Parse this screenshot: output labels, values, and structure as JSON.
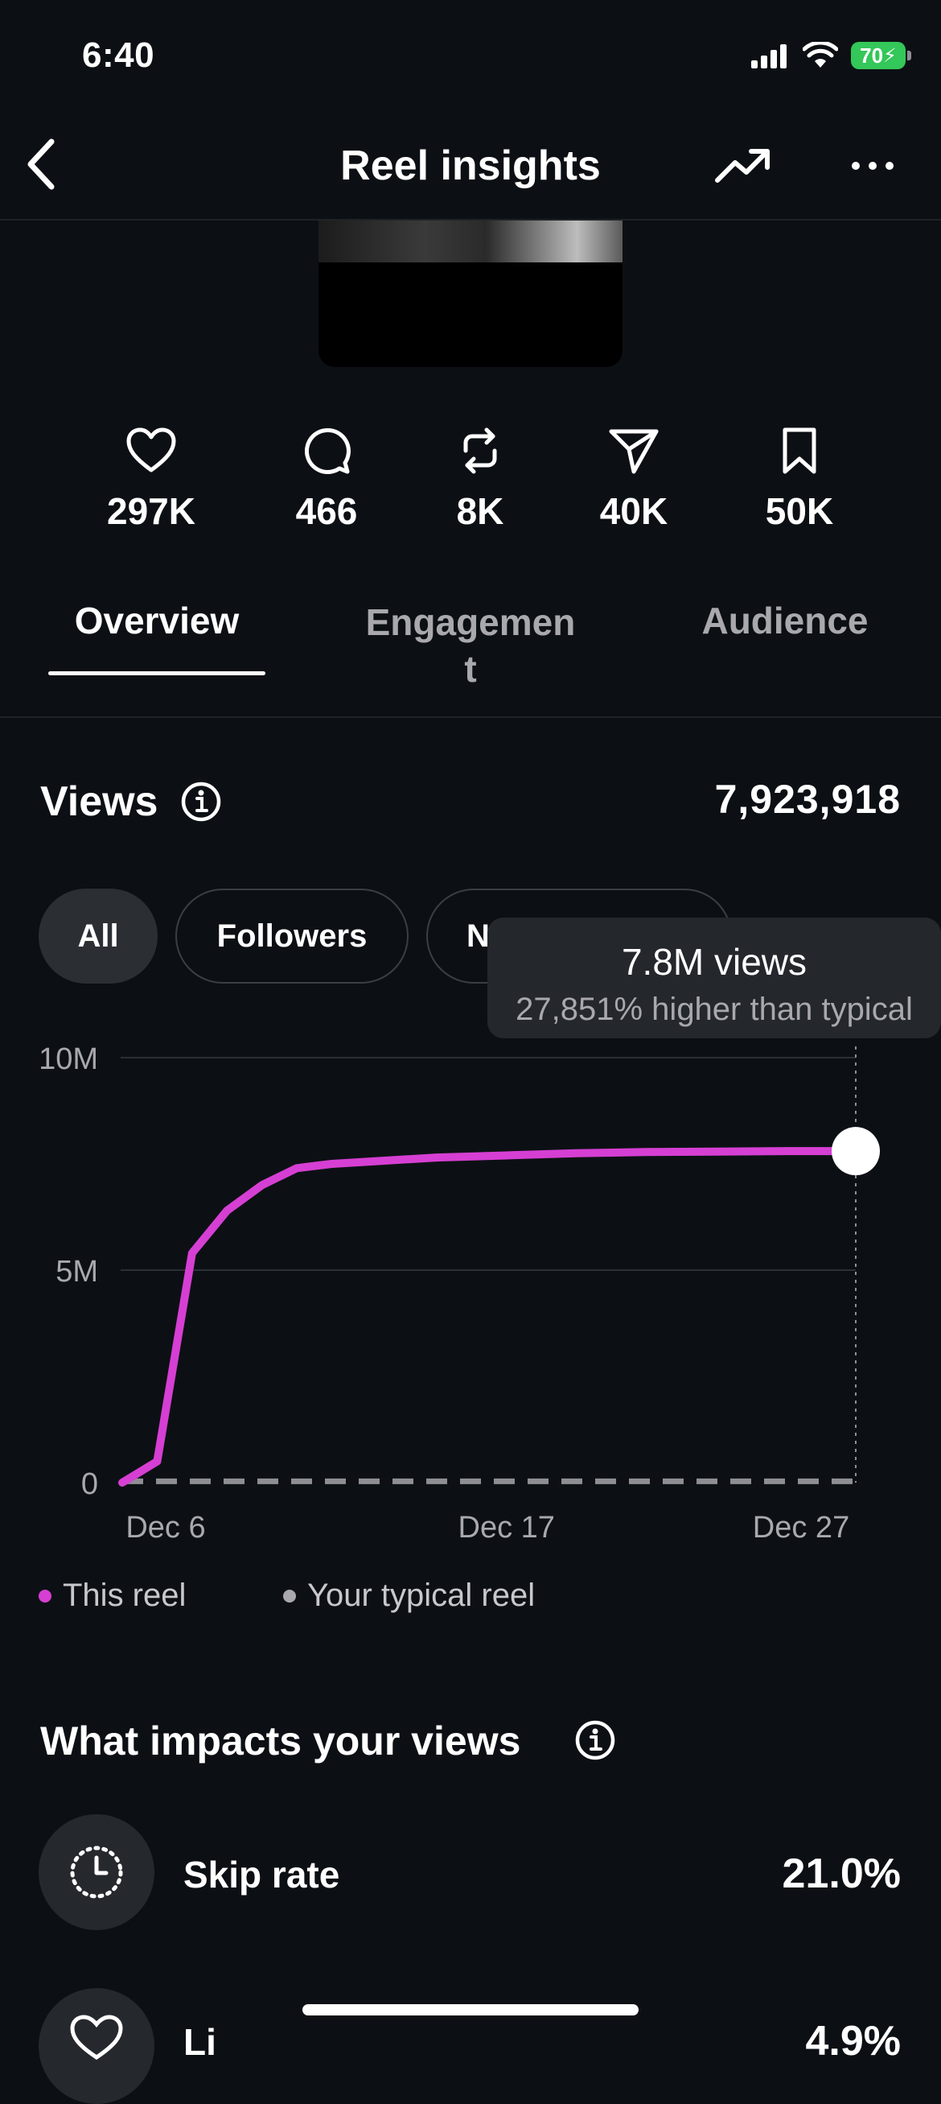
{
  "status_bar": {
    "time": "6:40",
    "battery": "70"
  },
  "header": {
    "title": "Reel insights"
  },
  "stats": [
    {
      "icon": "heart-icon",
      "value": "297K"
    },
    {
      "icon": "comment-icon",
      "value": "466"
    },
    {
      "icon": "repost-icon",
      "value": "8K"
    },
    {
      "icon": "share-icon",
      "value": "40K"
    },
    {
      "icon": "bookmark-icon",
      "value": "50K"
    }
  ],
  "tabs": [
    {
      "label": "Overview",
      "active": true
    },
    {
      "label": "Engagemen\nt",
      "active": false
    },
    {
      "label": "Audience",
      "active": false
    }
  ],
  "views": {
    "title": "Views",
    "total": "7,923,918",
    "filters": [
      "All",
      "Followers",
      "N"
    ]
  },
  "tooltip": {
    "main": "7.8M views",
    "sub": "27,851% higher than typical"
  },
  "chart_data": {
    "type": "line",
    "x": [
      "Dec 6",
      "Dec 7",
      "Dec 8",
      "Dec 9",
      "Dec 10",
      "Dec 11",
      "Dec 12",
      "Dec 13",
      "Dec 15",
      "Dec 17",
      "Dec 19",
      "Dec 21",
      "Dec 23",
      "Dec 25",
      "Dec 27"
    ],
    "series": [
      {
        "name": "This reel",
        "color": "#d63fd3",
        "values": [
          0,
          0.5,
          5.4,
          6.4,
          7.0,
          7.4,
          7.5,
          7.55,
          7.65,
          7.7,
          7.75,
          7.78,
          7.79,
          7.8,
          7.8
        ]
      },
      {
        "name": "Your typical reel",
        "color": "#8e8e93",
        "values": [
          0.03,
          0.03,
          0.03,
          0.03,
          0.03,
          0.03,
          0.03,
          0.03,
          0.03,
          0.03,
          0.03,
          0.03,
          0.03,
          0.03,
          0.03
        ]
      }
    ],
    "x_tick_labels": [
      "Dec 6",
      "Dec 17",
      "Dec 27"
    ],
    "y_tick_labels": [
      "10M",
      "5M",
      "0"
    ],
    "ylim": [
      0,
      10
    ],
    "grid": true,
    "legend": "bottom-left"
  },
  "impacts": {
    "title": "What impacts your views",
    "items": [
      {
        "label": "Skip rate",
        "value": "21.0%"
      },
      {
        "label": "Li",
        "value": "4.9%"
      }
    ]
  }
}
